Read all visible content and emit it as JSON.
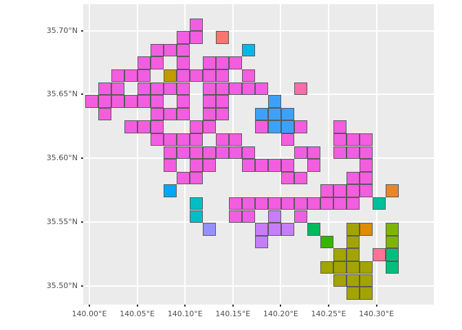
{
  "chart_data": {
    "type": "heatmap",
    "description": "Gridded tile map (geom_tile style) of colored grid cells over a lon/lat panel; most cells magenta with scattered other-colored cells at the periphery",
    "xlabel": "",
    "ylabel": "",
    "title": "",
    "x_axis": {
      "breaks": [
        140.0,
        140.05,
        140.1,
        140.15,
        140.2,
        140.25,
        140.3
      ],
      "labels": [
        "140.00°E",
        "140.05°E",
        "140.10°E",
        "140.15°E",
        "140.20°E",
        "140.25°E",
        "140.30°E"
      ],
      "range_shown": [
        139.994,
        140.36
      ]
    },
    "y_axis": {
      "breaks": [
        35.7,
        35.65,
        35.6,
        35.55,
        35.5
      ],
      "labels": [
        "35.70°N",
        "35.65°N",
        "35.60°N",
        "35.55°N",
        "35.50°N"
      ],
      "range_shown": [
        35.465,
        35.721
      ]
    },
    "grid": {
      "note": "tiles indexed by integer col,row; col 0 at left edge of blob area, row 0 at top",
      "cell_lon_step": 0.0136,
      "cell_lat_step": 0.01,
      "col0_lon_center": 140.0025,
      "row0_lat_center": 35.7047
    },
    "palette": {
      "magenta": "#F25EDF",
      "salmon": "#F8766D",
      "cyan": "#00B9E3",
      "gold": "#C49A02",
      "hotpink": "#FF6BA8",
      "blue": "#3DA1FA",
      "azure": "#00A9F4",
      "teal": "#00BEC6",
      "tealgreen": "#00BF9B",
      "periwinkle": "#9490FD",
      "violet": "#C77DFA",
      "emerald": "#00BA5E",
      "green": "#35B600",
      "olive": "#A4A400",
      "orange": "#E8862B",
      "darkorange": "#DE8C00",
      "yellowgreen": "#7DB500",
      "rosepink": "#FF7396",
      "springgreen": "#00BF7D"
    },
    "tiles": [
      [
        8,
        0,
        "magenta"
      ],
      [
        7,
        1,
        "magenta"
      ],
      [
        8,
        1,
        "magenta"
      ],
      [
        10,
        1,
        "salmon"
      ],
      [
        5,
        2,
        "magenta"
      ],
      [
        6,
        2,
        "magenta"
      ],
      [
        7,
        2,
        "magenta"
      ],
      [
        12,
        2,
        "cyan"
      ],
      [
        4,
        3,
        "magenta"
      ],
      [
        5,
        3,
        "magenta"
      ],
      [
        7,
        3,
        "magenta"
      ],
      [
        9,
        3,
        "magenta"
      ],
      [
        10,
        3,
        "magenta"
      ],
      [
        11,
        3,
        "magenta"
      ],
      [
        2,
        4,
        "magenta"
      ],
      [
        3,
        4,
        "magenta"
      ],
      [
        4,
        4,
        "magenta"
      ],
      [
        6,
        4,
        "gold"
      ],
      [
        7,
        4,
        "magenta"
      ],
      [
        8,
        4,
        "magenta"
      ],
      [
        9,
        4,
        "magenta"
      ],
      [
        10,
        4,
        "magenta"
      ],
      [
        12,
        4,
        "magenta"
      ],
      [
        1,
        5,
        "magenta"
      ],
      [
        2,
        5,
        "magenta"
      ],
      [
        4,
        5,
        "magenta"
      ],
      [
        5,
        5,
        "magenta"
      ],
      [
        6,
        5,
        "magenta"
      ],
      [
        7,
        5,
        "magenta"
      ],
      [
        9,
        5,
        "magenta"
      ],
      [
        10,
        5,
        "magenta"
      ],
      [
        11,
        5,
        "magenta"
      ],
      [
        12,
        5,
        "magenta"
      ],
      [
        13,
        5,
        "magenta"
      ],
      [
        16,
        5,
        "hotpink"
      ],
      [
        0,
        6,
        "magenta"
      ],
      [
        1,
        6,
        "magenta"
      ],
      [
        2,
        6,
        "magenta"
      ],
      [
        3,
        6,
        "magenta"
      ],
      [
        4,
        6,
        "magenta"
      ],
      [
        5,
        6,
        "magenta"
      ],
      [
        7,
        6,
        "magenta"
      ],
      [
        9,
        6,
        "magenta"
      ],
      [
        10,
        6,
        "magenta"
      ],
      [
        14,
        6,
        "blue"
      ],
      [
        1,
        7,
        "magenta"
      ],
      [
        5,
        7,
        "magenta"
      ],
      [
        6,
        7,
        "magenta"
      ],
      [
        7,
        7,
        "magenta"
      ],
      [
        9,
        7,
        "magenta"
      ],
      [
        10,
        7,
        "magenta"
      ],
      [
        13,
        7,
        "blue"
      ],
      [
        14,
        7,
        "blue"
      ],
      [
        15,
        7,
        "blue"
      ],
      [
        3,
        8,
        "magenta"
      ],
      [
        4,
        8,
        "magenta"
      ],
      [
        5,
        8,
        "magenta"
      ],
      [
        8,
        8,
        "magenta"
      ],
      [
        9,
        8,
        "magenta"
      ],
      [
        13,
        8,
        "magenta"
      ],
      [
        14,
        8,
        "blue"
      ],
      [
        15,
        8,
        "blue"
      ],
      [
        16,
        8,
        "magenta"
      ],
      [
        19,
        8,
        "magenta"
      ],
      [
        5,
        9,
        "magenta"
      ],
      [
        6,
        9,
        "magenta"
      ],
      [
        7,
        9,
        "magenta"
      ],
      [
        8,
        9,
        "magenta"
      ],
      [
        10,
        9,
        "magenta"
      ],
      [
        11,
        9,
        "magenta"
      ],
      [
        15,
        9,
        "magenta"
      ],
      [
        19,
        9,
        "magenta"
      ],
      [
        20,
        9,
        "magenta"
      ],
      [
        21,
        9,
        "magenta"
      ],
      [
        6,
        10,
        "magenta"
      ],
      [
        7,
        10,
        "magenta"
      ],
      [
        8,
        10,
        "magenta"
      ],
      [
        9,
        10,
        "magenta"
      ],
      [
        10,
        10,
        "magenta"
      ],
      [
        11,
        10,
        "magenta"
      ],
      [
        12,
        10,
        "magenta"
      ],
      [
        16,
        10,
        "magenta"
      ],
      [
        17,
        10,
        "magenta"
      ],
      [
        19,
        10,
        "magenta"
      ],
      [
        20,
        10,
        "magenta"
      ],
      [
        21,
        10,
        "magenta"
      ],
      [
        6,
        11,
        "magenta"
      ],
      [
        8,
        11,
        "magenta"
      ],
      [
        9,
        11,
        "magenta"
      ],
      [
        12,
        11,
        "magenta"
      ],
      [
        13,
        11,
        "magenta"
      ],
      [
        14,
        11,
        "magenta"
      ],
      [
        15,
        11,
        "magenta"
      ],
      [
        17,
        11,
        "magenta"
      ],
      [
        21,
        11,
        "magenta"
      ],
      [
        7,
        12,
        "magenta"
      ],
      [
        8,
        12,
        "magenta"
      ],
      [
        15,
        12,
        "magenta"
      ],
      [
        16,
        12,
        "magenta"
      ],
      [
        20,
        12,
        "magenta"
      ],
      [
        21,
        12,
        "magenta"
      ],
      [
        6,
        13,
        "azure"
      ],
      [
        18,
        13,
        "magenta"
      ],
      [
        19,
        13,
        "magenta"
      ],
      [
        20,
        13,
        "magenta"
      ],
      [
        21,
        13,
        "magenta"
      ],
      [
        23,
        13,
        "orange"
      ],
      [
        8,
        14,
        "teal"
      ],
      [
        11,
        14,
        "magenta"
      ],
      [
        12,
        14,
        "magenta"
      ],
      [
        13,
        14,
        "magenta"
      ],
      [
        14,
        14,
        "magenta"
      ],
      [
        15,
        14,
        "magenta"
      ],
      [
        16,
        14,
        "magenta"
      ],
      [
        17,
        14,
        "magenta"
      ],
      [
        18,
        14,
        "magenta"
      ],
      [
        19,
        14,
        "magenta"
      ],
      [
        20,
        14,
        "magenta"
      ],
      [
        22,
        14,
        "tealgreen"
      ],
      [
        8,
        15,
        "teal"
      ],
      [
        11,
        15,
        "magenta"
      ],
      [
        12,
        15,
        "magenta"
      ],
      [
        14,
        15,
        "violet"
      ],
      [
        16,
        15,
        "magenta"
      ],
      [
        9,
        16,
        "periwinkle"
      ],
      [
        13,
        16,
        "violet"
      ],
      [
        14,
        16,
        "violet"
      ],
      [
        15,
        16,
        "violet"
      ],
      [
        17,
        16,
        "emerald"
      ],
      [
        20,
        16,
        "olive"
      ],
      [
        21,
        16,
        "darkorange"
      ],
      [
        23,
        16,
        "yellowgreen"
      ],
      [
        13,
        17,
        "violet"
      ],
      [
        18,
        17,
        "green"
      ],
      [
        20,
        17,
        "olive"
      ],
      [
        23,
        17,
        "yellowgreen"
      ],
      [
        19,
        18,
        "olive"
      ],
      [
        20,
        18,
        "olive"
      ],
      [
        22,
        18,
        "rosepink"
      ],
      [
        23,
        18,
        "springgreen"
      ],
      [
        18,
        19,
        "olive"
      ],
      [
        19,
        19,
        "olive"
      ],
      [
        20,
        19,
        "olive"
      ],
      [
        21,
        19,
        "olive"
      ],
      [
        23,
        19,
        "springgreen"
      ],
      [
        19,
        20,
        "olive"
      ],
      [
        20,
        20,
        "olive"
      ],
      [
        21,
        20,
        "olive"
      ],
      [
        20,
        21,
        "olive"
      ],
      [
        21,
        21,
        "olive"
      ]
    ]
  }
}
